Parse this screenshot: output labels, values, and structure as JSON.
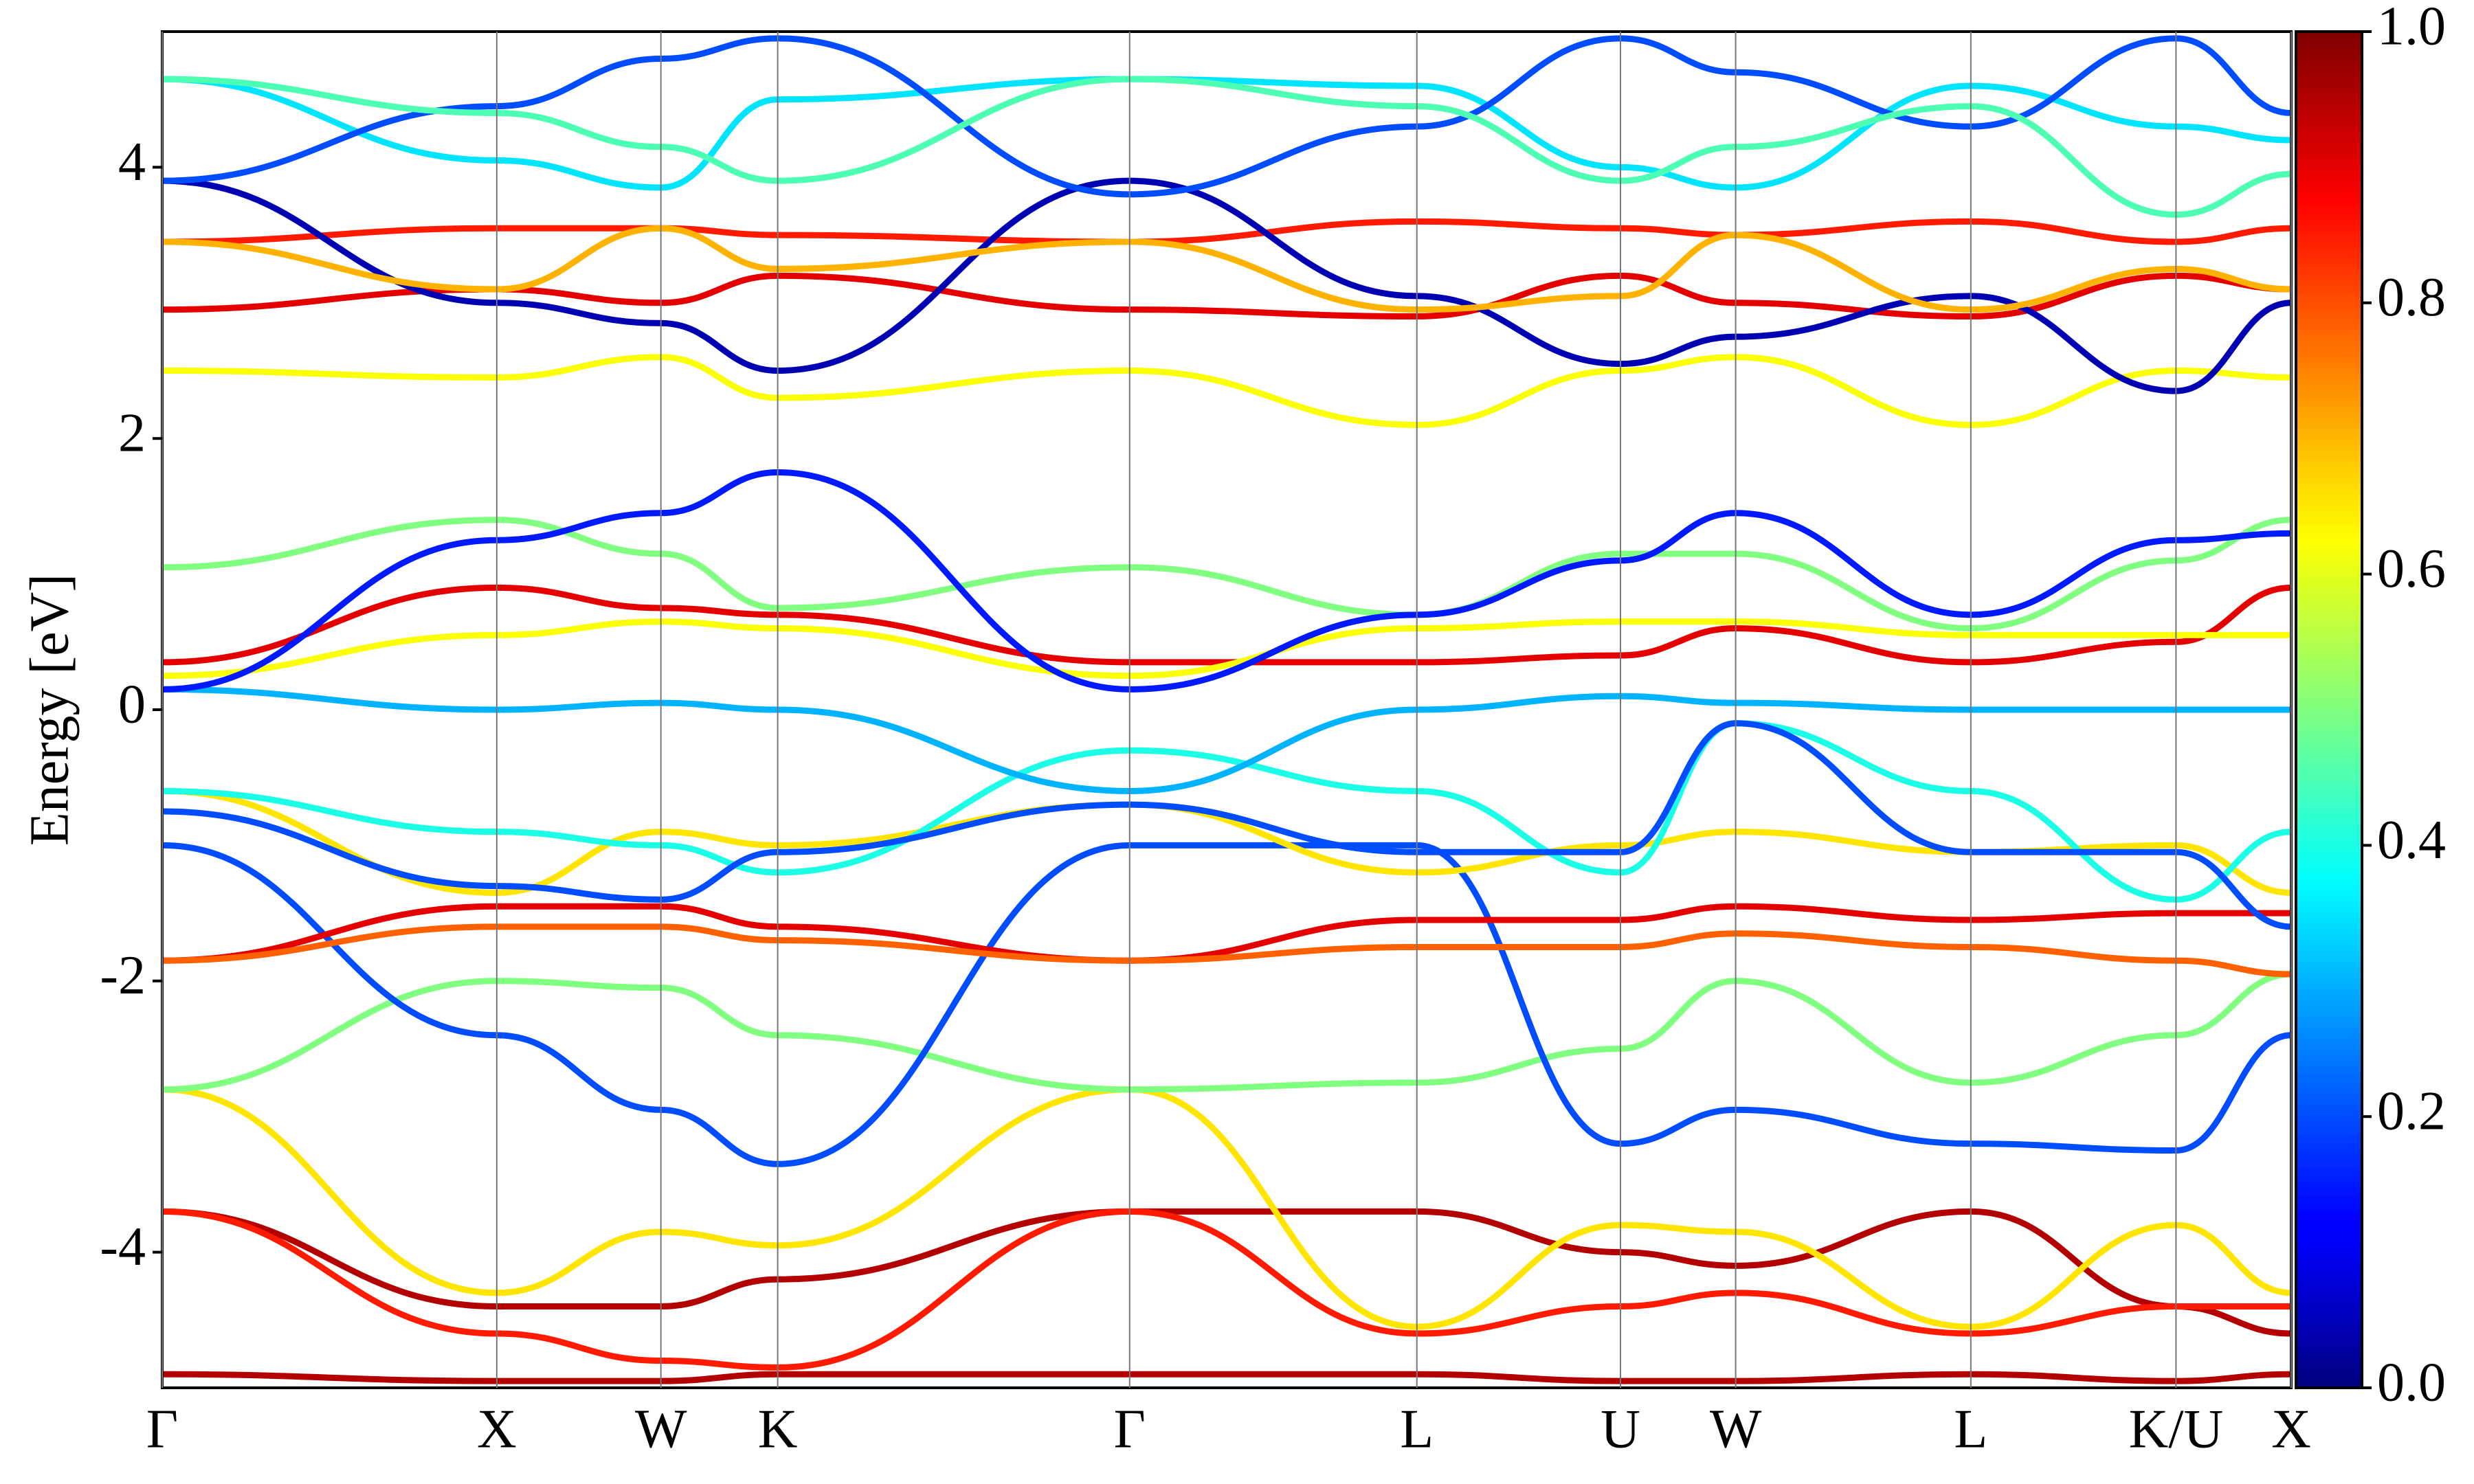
{
  "chart_data": {
    "type": "band",
    "ylabel": "Energy [eV]",
    "x": [
      0,
      212,
      316,
      390,
      613,
      795,
      924,
      997,
      1146,
      1276,
      1349
    ],
    "xlim": [
      0,
      1349
    ],
    "xticks": [
      {
        "value": 0,
        "label": "Γ"
      },
      {
        "value": 212,
        "label": "X"
      },
      {
        "value": 316,
        "label": "W"
      },
      {
        "value": 390,
        "label": "K"
      },
      {
        "value": 613,
        "label": "Γ"
      },
      {
        "value": 795,
        "label": "L"
      },
      {
        "value": 924,
        "label": "U"
      },
      {
        "value": 997,
        "label": "W"
      },
      {
        "value": 1146,
        "label": "L"
      },
      {
        "value": 1276,
        "label": "K/U"
      },
      {
        "value": 1349,
        "label": "X"
      }
    ],
    "ylim": [
      -5,
      5
    ],
    "yticks": [
      -4,
      -2,
      0,
      2,
      4
    ],
    "colormap": "jet",
    "clim": [
      0,
      1
    ],
    "cticks": [
      {
        "value": 0,
        "label": "0.0"
      },
      0.2,
      0.4,
      0.6,
      0.8,
      {
        "value": 1,
        "label": "1.0"
      }
    ],
    "series": [
      {
        "weight": 0.95,
        "values": [
          -4.9,
          -4.95,
          -4.95,
          -4.9,
          -4.9,
          -4.9,
          -4.95,
          -4.95,
          -4.9,
          -4.95,
          -4.9
        ]
      },
      {
        "weight": 0.95,
        "values": [
          -3.7,
          -4.4,
          -4.4,
          -4.2,
          -3.7,
          -3.7,
          -4.0,
          -4.1,
          -3.7,
          -4.4,
          -4.6
        ]
      },
      {
        "weight": 0.85,
        "values": [
          -3.7,
          -4.6,
          -4.8,
          -4.85,
          -3.7,
          -4.6,
          -4.4,
          -4.3,
          -4.6,
          -4.4,
          -4.4
        ]
      },
      {
        "weight": 0.65,
        "values": [
          -2.8,
          -4.3,
          -3.85,
          -3.95,
          -2.8,
          -4.55,
          -3.8,
          -3.85,
          -4.55,
          -3.8,
          -4.3
        ]
      },
      {
        "weight": 0.5,
        "values": [
          -2.8,
          -2.0,
          -2.05,
          -2.4,
          -2.8,
          -2.75,
          -2.5,
          -2.0,
          -2.75,
          -2.4,
          -1.95
        ]
      },
      {
        "weight": 0.2,
        "values": [
          -1.0,
          -2.4,
          -2.95,
          -3.35,
          -1.0,
          -1.0,
          -3.2,
          -2.95,
          -3.2,
          -3.25,
          -2.4
        ]
      },
      {
        "weight": 0.9,
        "values": [
          -1.85,
          -1.45,
          -1.45,
          -1.6,
          -1.85,
          -1.55,
          -1.55,
          -1.45,
          -1.55,
          -1.5,
          -1.5
        ]
      },
      {
        "weight": 0.78,
        "values": [
          -1.85,
          -1.6,
          -1.6,
          -1.7,
          -1.85,
          -1.75,
          -1.75,
          -1.65,
          -1.75,
          -1.85,
          -1.95
        ]
      },
      {
        "weight": 0.65,
        "values": [
          -0.6,
          -1.35,
          -0.9,
          -1.0,
          -0.7,
          -1.2,
          -1.0,
          -0.9,
          -1.05,
          -1.0,
          -1.35
        ]
      },
      {
        "weight": 0.4,
        "values": [
          -0.6,
          -0.9,
          -1.0,
          -1.2,
          -0.3,
          -0.6,
          -1.2,
          -0.1,
          -0.6,
          -1.4,
          -0.9
        ]
      },
      {
        "weight": 0.2,
        "values": [
          -0.75,
          -1.3,
          -1.4,
          -1.05,
          -0.7,
          -1.05,
          -1.05,
          -0.1,
          -1.05,
          -1.05,
          -1.6
        ]
      },
      {
        "weight": 0.3,
        "values": [
          0.15,
          0.0,
          0.05,
          0.0,
          -0.6,
          0.0,
          0.1,
          0.05,
          0.0,
          0.0,
          0.0
        ]
      },
      {
        "weight": 0.9,
        "values": [
          0.35,
          0.9,
          0.75,
          0.7,
          0.35,
          0.35,
          0.4,
          0.6,
          0.35,
          0.5,
          0.9
        ]
      },
      {
        "weight": 0.62,
        "values": [
          0.25,
          0.55,
          0.65,
          0.6,
          0.25,
          0.6,
          0.65,
          0.65,
          0.55,
          0.55,
          0.55
        ]
      },
      {
        "weight": 0.5,
        "values": [
          1.05,
          1.4,
          1.15,
          0.75,
          1.05,
          0.7,
          1.15,
          1.15,
          0.6,
          1.1,
          1.4
        ]
      },
      {
        "weight": 0.15,
        "values": [
          0.15,
          1.25,
          1.45,
          1.75,
          0.15,
          0.7,
          1.1,
          1.45,
          0.7,
          1.25,
          1.3
        ]
      },
      {
        "weight": 0.62,
        "values": [
          2.5,
          2.45,
          2.6,
          2.3,
          2.5,
          2.1,
          2.5,
          2.6,
          2.1,
          2.5,
          2.45
        ]
      },
      {
        "weight": 0.9,
        "values": [
          2.95,
          3.1,
          3.0,
          3.2,
          2.95,
          2.9,
          3.2,
          3.0,
          2.9,
          3.2,
          3.1
        ]
      },
      {
        "weight": 0.85,
        "values": [
          3.45,
          3.55,
          3.55,
          3.5,
          3.45,
          3.6,
          3.55,
          3.5,
          3.6,
          3.45,
          3.55
        ]
      },
      {
        "weight": 0.05,
        "values": [
          3.9,
          3.0,
          2.85,
          2.5,
          3.9,
          3.05,
          2.55,
          2.75,
          3.05,
          2.35,
          3.0
        ]
      },
      {
        "weight": 0.35,
        "values": [
          4.65,
          4.05,
          3.85,
          4.5,
          4.65,
          4.6,
          4.0,
          3.85,
          4.6,
          4.3,
          4.2
        ]
      },
      {
        "weight": 0.2,
        "values": [
          3.9,
          4.45,
          4.8,
          4.95,
          3.8,
          4.3,
          4.95,
          4.7,
          4.3,
          4.95,
          4.4
        ]
      },
      {
        "weight": 0.45,
        "values": [
          4.65,
          4.4,
          4.15,
          3.9,
          4.65,
          4.45,
          3.9,
          4.15,
          4.45,
          3.65,
          3.95
        ]
      },
      {
        "weight": 0.7,
        "values": [
          3.45,
          3.1,
          3.55,
          3.25,
          3.45,
          2.95,
          3.05,
          3.5,
          2.95,
          3.25,
          3.1
        ]
      }
    ]
  }
}
